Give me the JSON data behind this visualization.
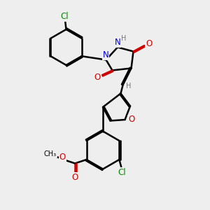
{
  "background_color": "#eeeeee",
  "bond_color": "#000000",
  "bond_width": 1.8,
  "atom_colors": {
    "C": "#000000",
    "H": "#777777",
    "N": "#0000dd",
    "O": "#cc0000",
    "Cl": "#008800"
  },
  "font_size": 8.5,
  "fig_size": [
    3.0,
    3.0
  ],
  "dpi": 100,
  "xlim": [
    0,
    10
  ],
  "ylim": [
    0,
    10
  ],
  "scale": 1.0
}
